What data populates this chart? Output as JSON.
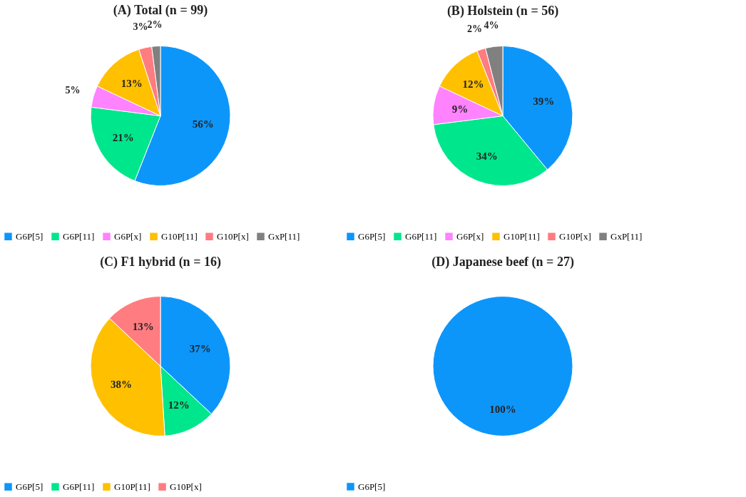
{
  "chart_data": [
    {
      "type": "pie",
      "title": "(A) Total (n = 99)",
      "categories": [
        "G6P[5]",
        "G6P[11]",
        "G6P[x]",
        "G10P[11]",
        "G10P[x]",
        "GxP[11]"
      ],
      "values": [
        56,
        21,
        5,
        13,
        3,
        2
      ],
      "value_labels": [
        "56%",
        "21%",
        "5%",
        "13%",
        "3%",
        "2%"
      ],
      "colors": [
        "#0d96fa",
        "#00e68c",
        "#ff82ff",
        "#ffc000",
        "#ff7c80",
        "#808080"
      ],
      "legend": "bottom"
    },
    {
      "type": "pie",
      "title": "(B) Holstein (n = 56)",
      "categories": [
        "G6P[5]",
        "G6P[11]",
        "G6P[x]",
        "G10P[11]",
        "G10P[x]",
        "GxP[11]"
      ],
      "values": [
        39,
        34,
        9,
        12,
        2,
        4
      ],
      "value_labels": [
        "39%",
        "34%",
        "9%",
        "12%",
        "2%",
        "4%"
      ],
      "colors": [
        "#0d96fa",
        "#00e68c",
        "#ff82ff",
        "#ffc000",
        "#ff7c80",
        "#808080"
      ],
      "legend": "bottom"
    },
    {
      "type": "pie",
      "title": "(C) F1 hybrid (n = 16)",
      "categories": [
        "G6P[5]",
        "G6P[11]",
        "G10P[11]",
        "G10P[x]"
      ],
      "values": [
        37,
        12,
        38,
        13
      ],
      "value_labels": [
        "37%",
        "12%",
        "38%",
        "13%"
      ],
      "colors": [
        "#0d96fa",
        "#00e68c",
        "#ffc000",
        "#ff7c80"
      ],
      "legend": "bottom"
    },
    {
      "type": "pie",
      "title": "(D) Japanese beef (n = 27)",
      "categories": [
        "G6P[5]"
      ],
      "values": [
        100
      ],
      "value_labels": [
        "100%"
      ],
      "colors": [
        "#0d96fa"
      ],
      "legend": "bottom"
    }
  ]
}
